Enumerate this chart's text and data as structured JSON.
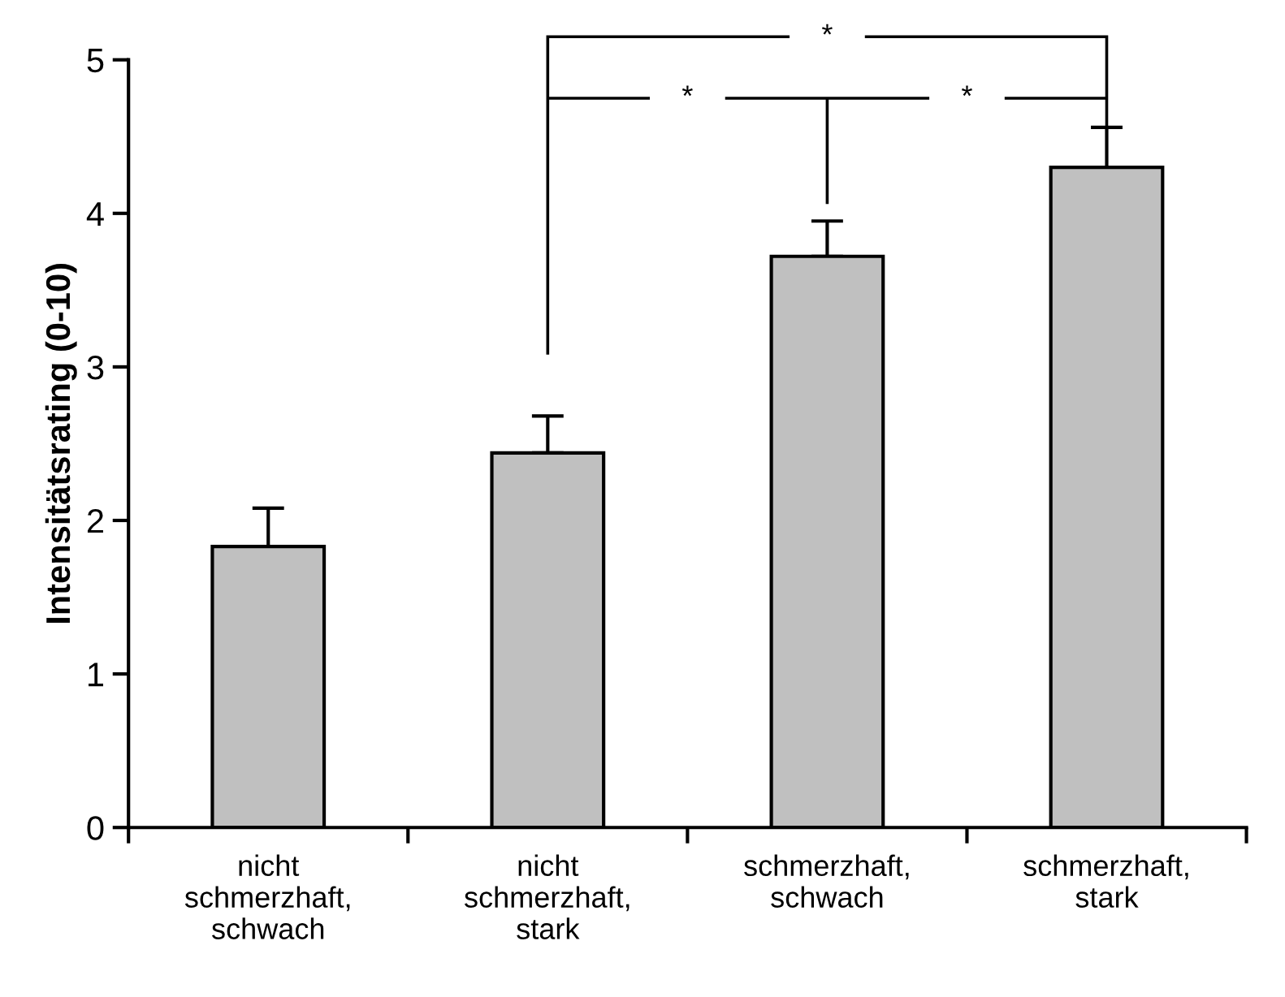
{
  "chart_data": {
    "type": "bar",
    "ylabel": "Intensitätsrating (0-10)",
    "categories": [
      "nicht\nschmerzhaft,\nschwach",
      "nicht\nschmerzhaft,\nstark",
      "schmerzhaft,\nschwach",
      "schmerzhaft,\nstark"
    ],
    "values": [
      1.83,
      2.44,
      3.72,
      4.3
    ],
    "errors": [
      [
        1.83,
        2.08
      ],
      [
        2.44,
        2.68
      ],
      [
        3.72,
        3.95
      ],
      [
        4.3,
        4.56
      ]
    ],
    "color": "#c0c0c0",
    "ylim": [
      0,
      5
    ],
    "yticks": [
      0,
      1,
      2,
      3,
      4,
      5
    ],
    "grid": false,
    "annotations": [
      "*",
      "*",
      "*"
    ]
  }
}
